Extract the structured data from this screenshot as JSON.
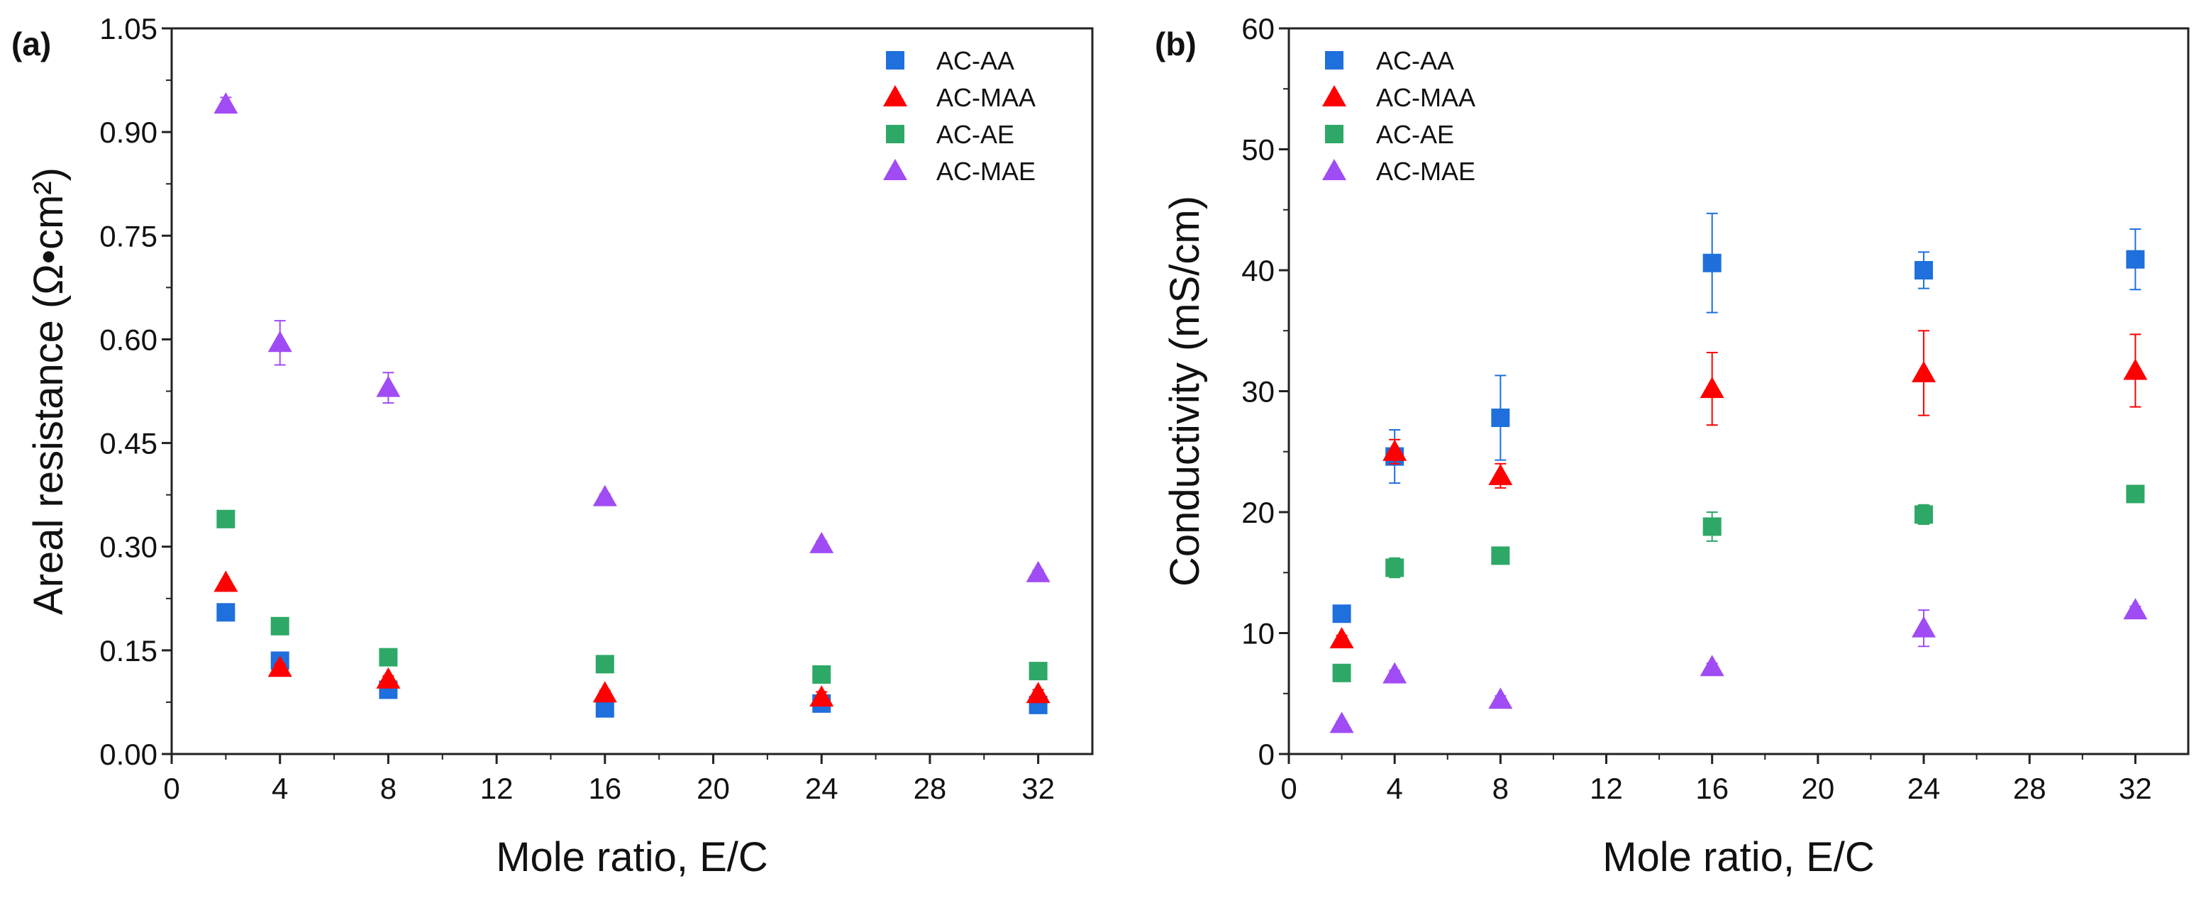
{
  "chart_data": [
    {
      "type": "scatter",
      "panel_label": "(a)",
      "xlabel": "Mole ratio, E/C",
      "ylabel": "Areal resistance (Ω•cm²)",
      "xlim": [
        0,
        34
      ],
      "ylim": [
        0,
        1.05
      ],
      "xticks": [
        0,
        4,
        8,
        12,
        16,
        20,
        24,
        28,
        32
      ],
      "yticks": [
        "0.00",
        "0.15",
        "0.30",
        "0.45",
        "0.60",
        "0.75",
        "0.90",
        "1.05"
      ],
      "legend_position": "top-right",
      "x": [
        2,
        4,
        8,
        16,
        24,
        32
      ],
      "series": [
        {
          "name": "AC-AA",
          "marker": "square",
          "color": "#1f6fdc",
          "values": [
            0.205,
            0.135,
            0.093,
            0.066,
            0.073,
            0.071
          ],
          "errors": [
            0,
            0.01,
            0.005,
            0.004,
            0.005,
            0.005
          ]
        },
        {
          "name": "AC-MAA",
          "marker": "triangle",
          "color": "#ff0000",
          "values": [
            0.248,
            0.125,
            0.108,
            0.088,
            0.082,
            0.087
          ],
          "errors": [
            0,
            0.005,
            0.005,
            0.004,
            0.008,
            0.006
          ]
        },
        {
          "name": "AC-AE",
          "marker": "square",
          "color": "#2ea866",
          "values": [
            0.34,
            0.185,
            0.14,
            0.13,
            0.115,
            0.12
          ],
          "errors": [
            0,
            0.006,
            0.004,
            0.005,
            0.004,
            0.004
          ]
        },
        {
          "name": "AC-MAE",
          "marker": "triangle",
          "color": "#a04cf5",
          "values": [
            0.94,
            0.595,
            0.53,
            0.372,
            0.304,
            0.262
          ],
          "errors": [
            0.01,
            0.032,
            0.022,
            0.004,
            0.004,
            0.004
          ]
        }
      ]
    },
    {
      "type": "scatter",
      "panel_label": "(b)",
      "xlabel": "Mole ratio, E/C",
      "ylabel": "Conductivity (mS/cm)",
      "xlim": [
        0,
        34
      ],
      "ylim": [
        0,
        60
      ],
      "xticks": [
        0,
        4,
        8,
        12,
        16,
        20,
        24,
        28,
        32
      ],
      "yticks": [
        "0",
        "10",
        "20",
        "30",
        "40",
        "50",
        "60"
      ],
      "legend_position": "top-left",
      "x": [
        2,
        4,
        8,
        16,
        24,
        32
      ],
      "series": [
        {
          "name": "AC-AA",
          "marker": "square",
          "color": "#1f6fdc",
          "values": [
            11.6,
            24.6,
            27.8,
            40.6,
            40.0,
            40.9
          ],
          "errors": [
            0.3,
            2.2,
            3.5,
            4.1,
            1.5,
            2.5
          ]
        },
        {
          "name": "AC-MAA",
          "marker": "triangle",
          "color": "#ff0000",
          "values": [
            9.5,
            25.0,
            23.0,
            30.2,
            31.5,
            31.7
          ],
          "errors": [
            0.3,
            1.0,
            1.0,
            3.0,
            3.5,
            3.0
          ]
        },
        {
          "name": "AC-AE",
          "marker": "square",
          "color": "#2ea866",
          "values": [
            6.7,
            15.4,
            16.4,
            18.8,
            19.8,
            21.5
          ],
          "errors": [
            0.2,
            0.8,
            0.4,
            1.2,
            0.8,
            0.4
          ]
        },
        {
          "name": "AC-MAE",
          "marker": "triangle",
          "color": "#a04cf5",
          "values": [
            2.5,
            6.6,
            4.5,
            7.2,
            10.4,
            11.9
          ],
          "errors": [
            0.2,
            0.3,
            0.3,
            0.3,
            1.5,
            0.3
          ]
        }
      ]
    }
  ]
}
